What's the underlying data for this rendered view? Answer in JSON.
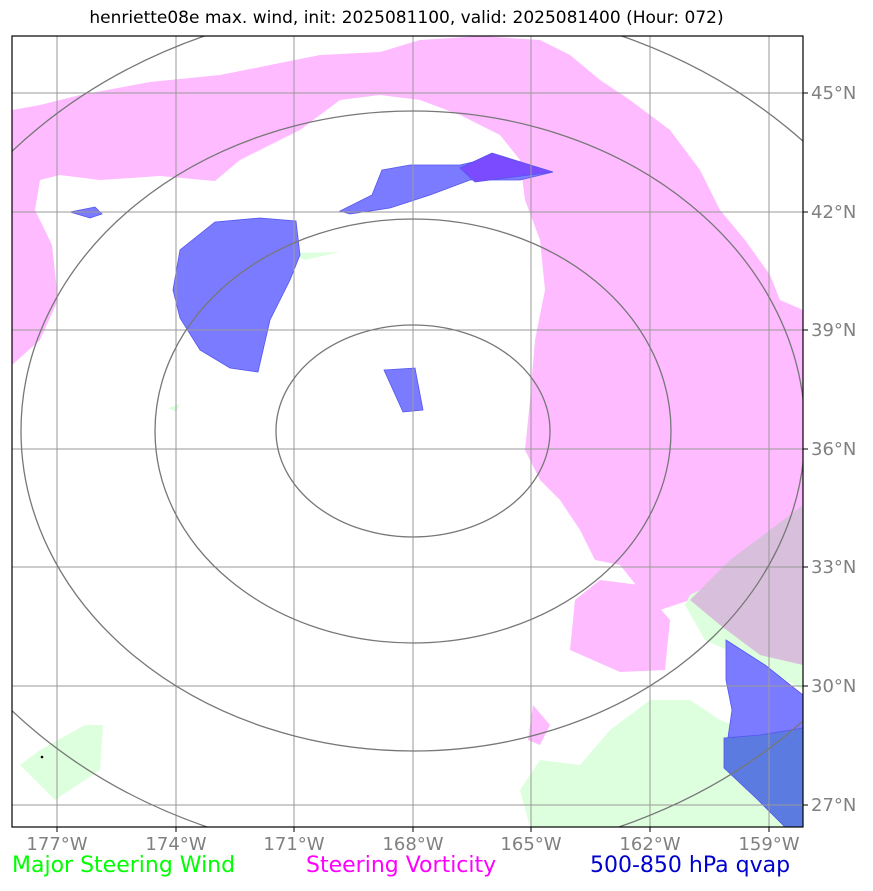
{
  "title": "henriette08e max. wind, init: 2025081100, valid: 2025081400 (Hour: 072)",
  "lat_labels": [
    "45°N",
    "42°N",
    "39°N",
    "36°N",
    "33°N",
    "30°N",
    "27°N"
  ],
  "lon_labels": [
    "177°W",
    "174°W",
    "171°W",
    "168°W",
    "165°W",
    "162°W",
    "159°W"
  ],
  "legend": {
    "steering_wind": "Major Steering Wind",
    "steering_vorticity": "Steering Vorticity",
    "qvap": "500-850 hPa qvap"
  },
  "colors": {
    "steering_wind": "#00ff00",
    "steering_vorticity": "#ff00ff",
    "qvap": "#0000cc",
    "vorticity_fill": "#ffbbff",
    "wind_fill": "#ddffdd",
    "qvap_fill": "#7b7bff",
    "grid": "#999999",
    "range_rings": "#777777",
    "tick_labels": "#808080"
  },
  "map": {
    "lon_range": [
      -178.2,
      -158.2
    ],
    "lat_range": [
      26.5,
      46.5
    ],
    "center": {
      "lon": -168,
      "lat": 36.5
    },
    "range_rings_count": 4
  }
}
